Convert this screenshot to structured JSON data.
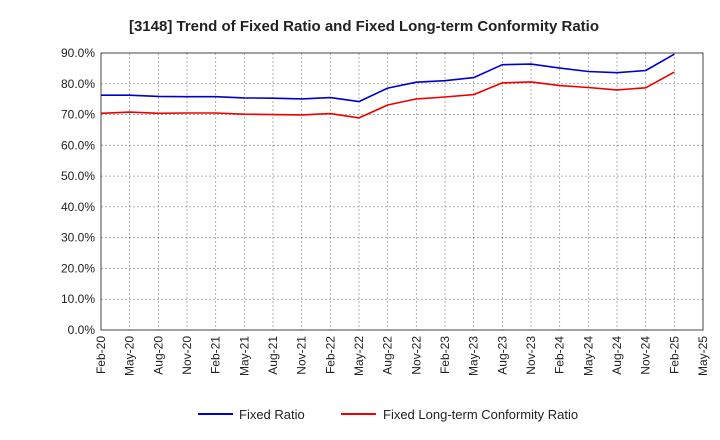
{
  "chart_data": {
    "type": "line",
    "title": "[3148]  Trend of Fixed Ratio and Fixed Long-term Conformity Ratio",
    "xlabel": "",
    "ylabel": "",
    "ylim": [
      0,
      90
    ],
    "y_ticks": [
      "0.0%",
      "10.0%",
      "20.0%",
      "30.0%",
      "40.0%",
      "50.0%",
      "60.0%",
      "70.0%",
      "80.0%",
      "90.0%"
    ],
    "x_tick_labels": [
      "Feb-20",
      "May-20",
      "Aug-20",
      "Nov-20",
      "Feb-21",
      "May-21",
      "Aug-21",
      "Nov-21",
      "Feb-22",
      "May-22",
      "Aug-22",
      "Nov-22",
      "Feb-23",
      "May-23",
      "Aug-23",
      "Nov-23",
      "Feb-24",
      "May-24",
      "Aug-24",
      "Nov-24",
      "Feb-25",
      "May-25"
    ],
    "grid": true,
    "legend_position": "bottom-center",
    "series": [
      {
        "name": "Fixed Ratio",
        "color": "#0000cc",
        "values": [
          76.3,
          76.3,
          75.9,
          75.8,
          75.8,
          75.4,
          75.3,
          75.1,
          75.5,
          74.2,
          78.6,
          80.5,
          81.0,
          82.0,
          86.2,
          86.4,
          85.1,
          84.0,
          83.6,
          84.3,
          89.6
        ]
      },
      {
        "name": "Fixed Long-term Conformity Ratio",
        "color": "#ee0000",
        "values": [
          70.4,
          70.8,
          70.4,
          70.5,
          70.5,
          70.1,
          70.0,
          69.9,
          70.3,
          68.9,
          73.1,
          75.1,
          75.7,
          76.5,
          80.3,
          80.6,
          79.4,
          78.8,
          78.0,
          78.7,
          83.8
        ]
      }
    ]
  }
}
